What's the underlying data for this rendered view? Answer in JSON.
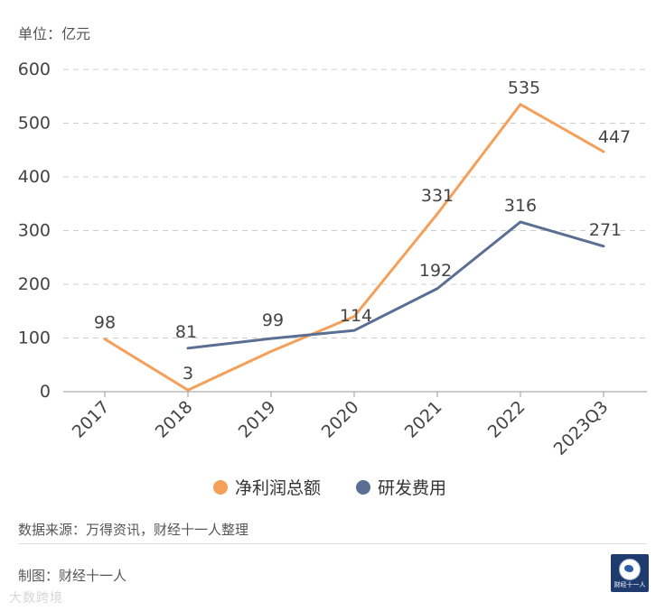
{
  "unit_label": "单位：亿元",
  "source": "数据来源：万得资讯，财经十一人整理",
  "credit": "制图：财经十一人",
  "watermark": "大数跨境",
  "logo_text": "财经十一人",
  "colors": {
    "net_profit": "#f5a05a",
    "rd_expense": "#5a6f93",
    "grid": "#cccccc",
    "text": "#333333"
  },
  "chart_data": {
    "type": "line",
    "categories": [
      "2017",
      "2018",
      "2019",
      "2020",
      "2021",
      "2022",
      "2023Q3"
    ],
    "ylim": [
      0,
      600
    ],
    "yticks": [
      0,
      100,
      200,
      300,
      400,
      500,
      600
    ],
    "grid": true,
    "legend_position": "bottom-center",
    "series": [
      {
        "name": "净利润总额",
        "color": "#f5a05a",
        "values": [
          98,
          3,
          75,
          140,
          331,
          535,
          447
        ],
        "labels": [
          "98",
          "3",
          "",
          "",
          "331",
          "535",
          "447"
        ]
      },
      {
        "name": "研发费用",
        "color": "#5a6f93",
        "values": [
          null,
          81,
          99,
          114,
          192,
          316,
          271
        ],
        "labels": [
          "",
          "81",
          "99",
          "114",
          "192",
          "316",
          "271"
        ]
      }
    ]
  }
}
